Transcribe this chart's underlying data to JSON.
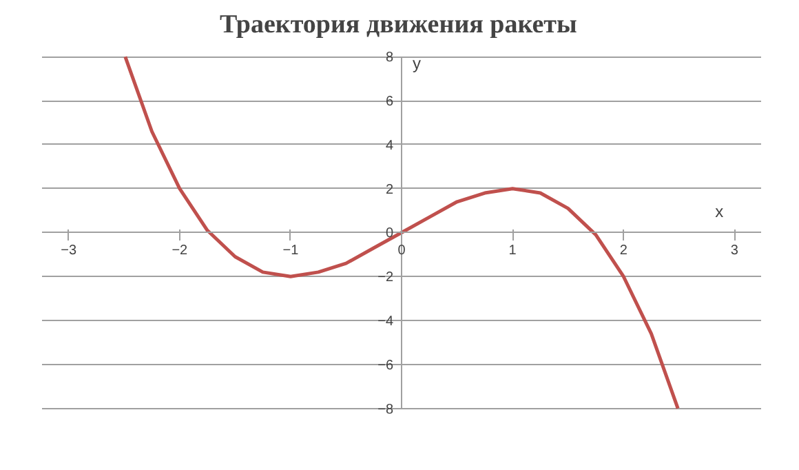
{
  "chart_data": {
    "type": "line",
    "title": "Траектория движения  ракеты",
    "xlabel": "x",
    "ylabel": "y",
    "xlim": [
      -3,
      3
    ],
    "ylim": [
      -8,
      8
    ],
    "xticks": [
      -3,
      -2,
      -1,
      0,
      1,
      2,
      3
    ],
    "yticks": [
      -8,
      -6,
      -4,
      -2,
      0,
      2,
      4,
      6,
      8
    ],
    "grid": "y",
    "marker": "none",
    "line_style": "solid",
    "series": [
      {
        "color": "#c0504d",
        "x": [
          -2.49,
          -2.25,
          -2,
          -1.75,
          -1.5,
          -1.25,
          -1,
          -0.75,
          -0.5,
          -0.25,
          0,
          0.25,
          0.5,
          0.75,
          1,
          1.25,
          1.5,
          1.75,
          2,
          2.25,
          2.49
        ],
        "values": [
          8,
          4.6,
          2,
          0.1,
          -1.1,
          -1.8,
          -2,
          -1.8,
          -1.4,
          -0.7,
          0,
          0.7,
          1.4,
          1.8,
          2,
          1.8,
          1.1,
          -0.1,
          -2,
          -4.6,
          -8
        ]
      }
    ]
  }
}
